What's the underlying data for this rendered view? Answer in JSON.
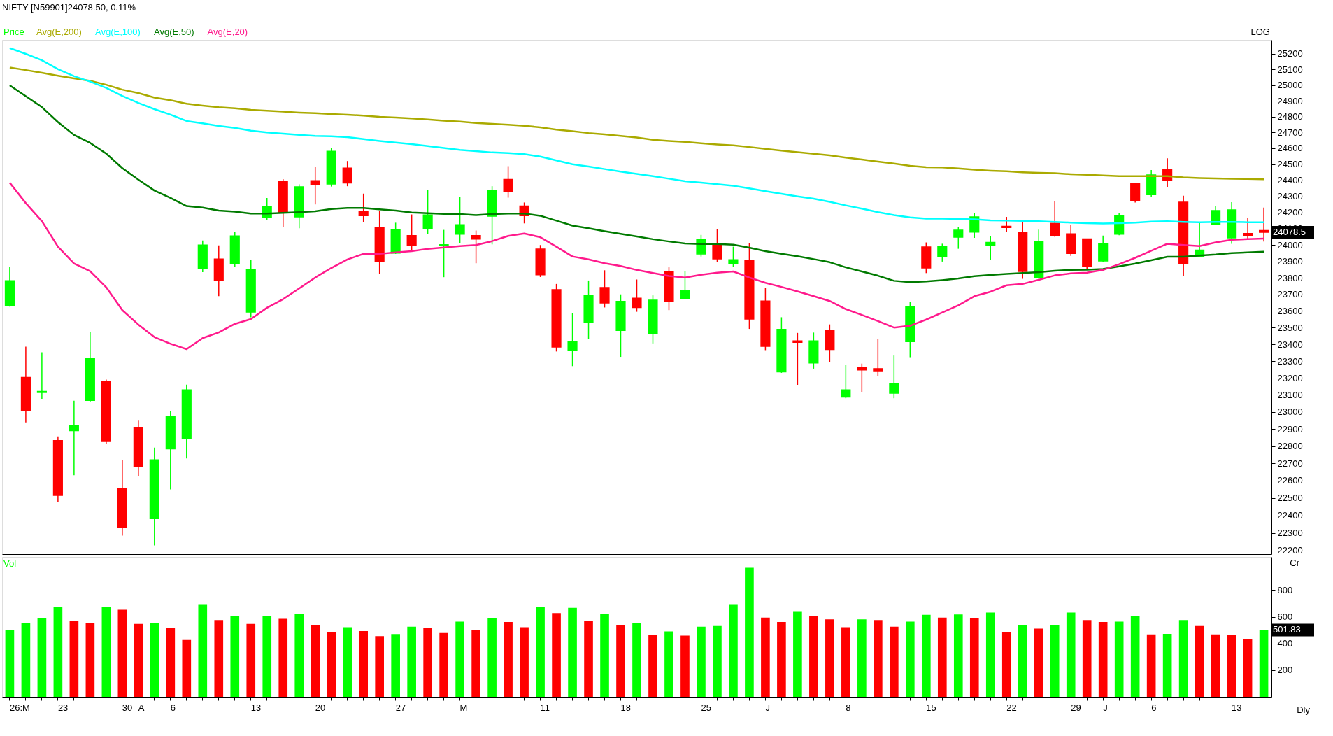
{
  "chart_data": [
    {
      "type": "candlestick",
      "title": "NIFTY [N59901]24078.50,  0.11%",
      "categories": [
        null,
        null,
        null,
        null,
        null,
        null,
        null,
        null,
        null,
        null,
        null,
        null,
        null,
        null,
        null,
        null,
        null,
        null,
        null,
        null,
        null,
        null,
        null,
        null,
        null,
        null,
        null,
        null,
        null,
        null,
        null,
        null,
        null,
        null,
        null,
        null,
        null,
        null,
        null,
        null,
        null,
        null,
        null,
        null,
        null,
        null,
        null,
        null,
        null,
        null,
        null,
        null,
        null,
        null,
        null,
        null,
        null,
        null,
        null,
        null,
        null,
        null,
        null,
        null,
        null,
        null,
        null,
        null,
        null,
        null,
        null,
        null,
        null,
        null,
        null,
        null,
        null,
        null,
        null
      ],
      "series": [
        {
          "name": "Price",
          "type": "candlestick",
          "color": "#00ff00",
          "ohlc": [
            [
              23634,
              23868,
              23626,
              23782
            ],
            [
              23203,
              23386,
              22938,
              23006
            ],
            [
              23114,
              23352,
              23076,
              23120
            ],
            [
              22832,
              22856,
              22478,
              22515
            ],
            [
              22890,
              23065,
              22631,
              22922
            ],
            [
              23067,
              23471,
              23060,
              23314
            ],
            [
              23181,
              23190,
              22813,
              22827
            ],
            [
              22554,
              22720,
              22285,
              22330
            ],
            [
              22907,
              22948,
              22627,
              22683
            ],
            [
              22382,
              22791,
              22230,
              22720
            ],
            [
              22784,
              23004,
              22549,
              22974
            ],
            [
              22845,
              23160,
              22728,
              23129
            ],
            [
              23858,
              24028,
              23835,
              24000
            ],
            [
              23914,
              23998,
              23689,
              23782
            ],
            [
              23887,
              24081,
              23868,
              24056
            ],
            [
              23593,
              23910,
              23562,
              23848
            ],
            [
              24169,
              24290,
              24155,
              24236
            ],
            [
              24391,
              24407,
              24109,
              24198
            ],
            [
              24173,
              24375,
              24103,
              24359
            ],
            [
              24397,
              24484,
              24250,
              24371
            ],
            [
              24377,
              24603,
              24361,
              24581
            ],
            [
              24476,
              24520,
              24363,
              24383
            ],
            [
              24208,
              24317,
              24143,
              24181
            ],
            [
              24105,
              24208,
              23823,
              23897
            ],
            [
              23951,
              24137,
              23946,
              24097
            ],
            [
              24058,
              24188,
              23967,
              24000
            ],
            [
              24099,
              24341,
              24067,
              24185
            ],
            [
              23998,
              24093,
              23804,
              24002
            ],
            [
              24067,
              24298,
              24012,
              24125
            ],
            [
              24058,
              24089,
              23889,
              24036
            ],
            [
              24177,
              24363,
              24004,
              24337
            ],
            [
              24405,
              24488,
              24292,
              24331
            ],
            [
              24240,
              24262,
              24133,
              24181
            ],
            [
              23975,
              24000,
              23805,
              23819
            ],
            [
              23728,
              23763,
              23357,
              23384
            ],
            [
              23365,
              23588,
              23270,
              23416
            ],
            [
              23533,
              23784,
              23433,
              23696
            ],
            [
              23741,
              23846,
              23621,
              23648
            ],
            [
              23483,
              23700,
              23325,
              23658
            ],
            [
              23677,
              23790,
              23595,
              23621
            ],
            [
              23462,
              23694,
              23405,
              23665
            ],
            [
              23837,
              23864,
              23605,
              23660
            ],
            [
              23677,
              23840,
              23670,
              23724
            ],
            [
              23946,
              24062,
              23930,
              24036
            ],
            [
              24006,
              24097,
              23895,
              23916
            ],
            [
              23887,
              23990,
              23866,
              23910
            ],
            [
              23907,
              24010,
              23492,
              23551
            ],
            [
              23660,
              23739,
              23365,
              23388
            ],
            [
              23236,
              23562,
              23230,
              23489
            ],
            [
              23420,
              23468,
              23158,
              23412
            ],
            [
              23289,
              23470,
              23255,
              23420
            ],
            [
              23485,
              23519,
              23293,
              23369
            ],
            [
              23087,
              23276,
              23080,
              23129
            ],
            [
              23262,
              23285,
              23114,
              23247
            ],
            [
              23255,
              23430,
              23211,
              23238
            ],
            [
              23110,
              23333,
              23080,
              23167
            ],
            [
              23416,
              23653,
              23323,
              23628
            ],
            [
              23988,
              24016,
              23829,
              23860
            ],
            [
              23930,
              24008,
              23899,
              23992
            ],
            [
              24048,
              24111,
              23977,
              24091
            ],
            [
              24079,
              24196,
              24044,
              24173
            ],
            [
              23996,
              24054,
              23909,
              24016
            ],
            [
              24115,
              24173,
              24079,
              24107
            ],
            [
              24077,
              24145,
              23794,
              23839
            ],
            [
              23800,
              24095,
              23794,
              24024
            ],
            [
              24133,
              24270,
              24050,
              24060
            ],
            [
              24069,
              24125,
              23934,
              23949
            ],
            [
              24038,
              24040,
              23848,
              23870
            ],
            [
              23903,
              24058,
              23899,
              24008
            ],
            [
              24067,
              24198,
              24060,
              24179
            ],
            [
              24381,
              24385,
              24262,
              24274
            ],
            [
              24310,
              24464,
              24296,
              24433
            ],
            [
              24468,
              24537,
              24359,
              24401
            ],
            [
              24264,
              24304,
              23811,
              23887
            ],
            [
              23932,
              24135,
              23925,
              23969
            ],
            [
              24127,
              24238,
              24125,
              24212
            ],
            [
              24044,
              24264,
              24008,
              24216
            ],
            [
              24071,
              24165,
              24036,
              24058
            ],
            [
              24089,
              24230,
              24022,
              24078.5
            ]
          ],
          "colors": [
            "#00ff00",
            "#ff0000",
            "#00ff00",
            "#ff0000",
            "#00ff00",
            "#00ff00",
            "#ff0000",
            "#ff0000",
            "#ff0000",
            "#00ff00",
            "#00ff00",
            "#00ff00",
            "#00ff00",
            "#ff0000",
            "#00ff00",
            "#00ff00",
            "#00ff00",
            "#ff0000",
            "#00ff00",
            "#ff0000",
            "#00ff00",
            "#ff0000",
            "#ff0000",
            "#ff0000",
            "#00ff00",
            "#ff0000",
            "#00ff00",
            "#00ff00",
            "#00ff00",
            "#ff0000",
            "#00ff00",
            "#ff0000",
            "#ff0000",
            "#ff0000",
            "#ff0000",
            "#00ff00",
            "#00ff00",
            "#ff0000",
            "#00ff00",
            "#ff0000",
            "#00ff00",
            "#ff0000",
            "#00ff00",
            "#00ff00",
            "#ff0000",
            "#00ff00",
            "#ff0000",
            "#ff0000",
            "#00ff00",
            "#ff0000",
            "#00ff00",
            "#ff0000",
            "#00ff00",
            "#ff0000",
            "#ff0000",
            "#00ff00",
            "#00ff00",
            "#ff0000",
            "#00ff00",
            "#00ff00",
            "#00ff00",
            "#00ff00",
            "#ff0000",
            "#ff0000",
            "#00ff00",
            "#ff0000",
            "#ff0000",
            "#ff0000",
            "#00ff00",
            "#00ff00",
            "#ff0000",
            "#00ff00",
            "#ff0000",
            "#ff0000",
            "#00ff00",
            "#00ff00",
            "#00ff00",
            "#ff0000",
            "#ff0000"
          ]
        },
        {
          "name": "Avg(E,200)",
          "type": "line",
          "color": "#aaaa00",
          "values": [
            25112,
            25096,
            25079,
            25060,
            25043,
            25027,
            25002,
            24971,
            24949,
            24920,
            24904,
            24881,
            24869,
            24859,
            24853,
            24843,
            24837,
            24831,
            24825,
            24821,
            24816,
            24812,
            24806,
            24798,
            24794,
            24788,
            24782,
            24774,
            24768,
            24760,
            24754,
            24748,
            24742,
            24732,
            24718,
            24708,
            24696,
            24688,
            24678,
            24668,
            24654,
            24646,
            24640,
            24632,
            24624,
            24618,
            24608,
            24596,
            24586,
            24576,
            24566,
            24556,
            24542,
            24530,
            24516,
            24504,
            24490,
            24482,
            24480,
            24474,
            24466,
            24460,
            24456,
            24450,
            24446,
            24444,
            24438,
            24434,
            24430,
            24426,
            24426,
            24426,
            24426,
            24418,
            24414,
            24412,
            24410,
            24408,
            24406
          ]
        },
        {
          "name": "Avg(E,100)",
          "type": "line",
          "color": "#00ffff",
          "values": [
            25237,
            25200,
            25159,
            25102,
            25057,
            25022,
            24982,
            24931,
            24886,
            24847,
            24812,
            24772,
            24757,
            24741,
            24729,
            24711,
            24700,
            24692,
            24684,
            24678,
            24676,
            24670,
            24658,
            24646,
            24636,
            24626,
            24614,
            24602,
            24590,
            24582,
            24574,
            24570,
            24564,
            24548,
            24524,
            24500,
            24486,
            24470,
            24454,
            24440,
            24426,
            24410,
            24394,
            24386,
            24376,
            24366,
            24350,
            24332,
            24316,
            24300,
            24286,
            24266,
            24244,
            24224,
            24202,
            24184,
            24170,
            24162,
            24162,
            24160,
            24158,
            24152,
            24150,
            24148,
            24146,
            24142,
            24138,
            24134,
            24132,
            24134,
            24138,
            24144,
            24146,
            24142,
            24140,
            24142,
            24142,
            24140,
            24140
          ]
        },
        {
          "name": "Avg(E,50)",
          "type": "line",
          "color": "#007a00",
          "values": [
            24998,
            24929,
            24860,
            24765,
            24684,
            24634,
            24567,
            24476,
            24404,
            24336,
            24290,
            24240,
            24230,
            24212,
            24206,
            24194,
            24194,
            24198,
            24202,
            24208,
            24222,
            24228,
            24228,
            24220,
            24212,
            24200,
            24196,
            24192,
            24190,
            24184,
            24190,
            24194,
            24194,
            24180,
            24150,
            24119,
            24103,
            24085,
            24069,
            24053,
            24036,
            24022,
            24010,
            24006,
            24006,
            24002,
            23984,
            23963,
            23947,
            23932,
            23914,
            23895,
            23864,
            23839,
            23813,
            23782,
            23774,
            23778,
            23786,
            23796,
            23810,
            23818,
            23824,
            23829,
            23835,
            23843,
            23848,
            23850,
            23854,
            23870,
            23887,
            23907,
            23928,
            23928,
            23936,
            23942,
            23951,
            23955,
            23959
          ]
        },
        {
          "name": "Avg(E,20)",
          "type": "line",
          "color": "#ff1a8c",
          "values": [
            24385,
            24258,
            24147,
            23990,
            23887,
            23840,
            23743,
            23605,
            23518,
            23443,
            23403,
            23371,
            23437,
            23471,
            23522,
            23551,
            23619,
            23671,
            23736,
            23802,
            23860,
            23912,
            23946,
            23946,
            23955,
            23963,
            23977,
            23985,
            23994,
            24000,
            24024,
            24056,
            24071,
            24048,
            23990,
            23930,
            23912,
            23889,
            23872,
            23848,
            23829,
            23811,
            23802,
            23819,
            23831,
            23839,
            23802,
            23770,
            23745,
            23718,
            23689,
            23660,
            23611,
            23576,
            23539,
            23500,
            23511,
            23548,
            23591,
            23634,
            23689,
            23716,
            23755,
            23763,
            23788,
            23815,
            23827,
            23831,
            23848,
            23883,
            23922,
            23965,
            24008,
            24000,
            23994,
            24016,
            24032,
            24036,
            24040
          ]
        }
      ],
      "ylim": [
        22180,
        25290
      ],
      "yticks": [
        22200,
        22300,
        22400,
        22500,
        22600,
        22700,
        22800,
        22900,
        23000,
        23100,
        23200,
        23300,
        23400,
        23500,
        23600,
        23700,
        23800,
        23900,
        24000,
        24100,
        24200,
        24300,
        24400,
        24500,
        24600,
        24700,
        24800,
        24900,
        25000,
        25100,
        25200
      ],
      "log": true,
      "legend": "top left",
      "tick_labels": "y",
      "annotations": [
        "LOG",
        "24078.5"
      ]
    },
    {
      "type": "bar",
      "title": "Vol",
      "categories": [
        "26:M",
        null,
        null,
        "23",
        null,
        null,
        null,
        "30",
        "A",
        null,
        "6",
        null,
        null,
        null,
        null,
        "13",
        null,
        null,
        null,
        "20",
        null,
        null,
        null,
        null,
        "27",
        null,
        null,
        null,
        "M",
        null,
        null,
        null,
        null,
        "11",
        null,
        null,
        null,
        null,
        "18",
        null,
        null,
        null,
        null,
        "25",
        null,
        null,
        null,
        "J",
        null,
        null,
        null,
        null,
        "8",
        null,
        null,
        null,
        null,
        "15",
        null,
        null,
        null,
        null,
        "22",
        null,
        null,
        null,
        "29",
        null,
        "J",
        null,
        null,
        "6",
        null,
        null,
        null,
        null,
        "13",
        null,
        null
      ],
      "values": [
        503,
        556,
        591,
        676,
        571,
        553,
        673,
        653,
        547,
        556,
        518,
        426,
        691,
        576,
        606,
        547,
        609,
        585,
        623,
        541,
        485,
        523,
        494,
        456,
        471,
        526,
        518,
        479,
        565,
        500,
        591,
        562,
        523,
        673,
        629,
        668,
        571,
        620,
        541,
        553,
        465,
        491,
        459,
        526,
        532,
        691,
        968,
        594,
        562,
        638,
        609,
        582,
        523,
        582,
        576,
        526,
        565,
        615,
        594,
        618,
        588,
        632,
        488,
        541,
        512,
        535,
        632,
        576,
        562,
        565,
        609,
        468,
        473,
        576,
        532,
        468,
        462,
        435,
        501.83
      ],
      "colors": [
        "#00ff00",
        "#00ff00",
        "#00ff00",
        "#00ff00",
        "#ff0000",
        "#ff0000",
        "#00ff00",
        "#ff0000",
        "#ff0000",
        "#00ff00",
        "#ff0000",
        "#ff0000",
        "#00ff00",
        "#ff0000",
        "#00ff00",
        "#ff0000",
        "#00ff00",
        "#ff0000",
        "#00ff00",
        "#ff0000",
        "#ff0000",
        "#00ff00",
        "#ff0000",
        "#ff0000",
        "#00ff00",
        "#00ff00",
        "#ff0000",
        "#ff0000",
        "#00ff00",
        "#ff0000",
        "#00ff00",
        "#ff0000",
        "#ff0000",
        "#00ff00",
        "#ff0000",
        "#00ff00",
        "#ff0000",
        "#00ff00",
        "#ff0000",
        "#00ff00",
        "#ff0000",
        "#00ff00",
        "#ff0000",
        "#00ff00",
        "#00ff00",
        "#00ff00",
        "#00ff00",
        "#ff0000",
        "#ff0000",
        "#00ff00",
        "#ff0000",
        "#ff0000",
        "#ff0000",
        "#00ff00",
        "#ff0000",
        "#ff0000",
        "#00ff00",
        "#00ff00",
        "#ff0000",
        "#00ff00",
        "#ff0000",
        "#00ff00",
        "#ff0000",
        "#00ff00",
        "#ff0000",
        "#00ff00",
        "#00ff00",
        "#ff0000",
        "#ff0000",
        "#00ff00",
        "#00ff00",
        "#ff0000",
        "#00ff00",
        "#00ff00",
        "#ff0000",
        "#ff0000",
        "#ff0000",
        "#ff0000",
        "#00ff00"
      ],
      "ylim": [
        0,
        1050
      ],
      "yticks": [
        200,
        400,
        600,
        800
      ],
      "annotations": [
        "Cr",
        "Dly",
        "501.83"
      ]
    }
  ]
}
